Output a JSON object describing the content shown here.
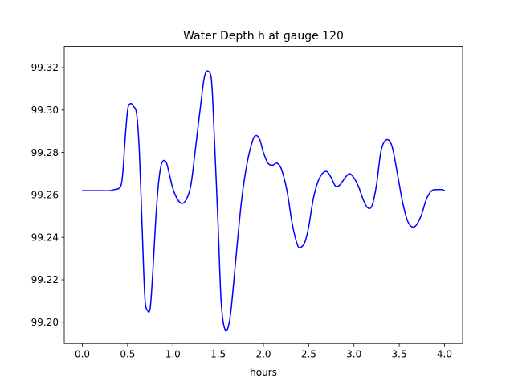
{
  "chart_data": {
    "type": "line",
    "title": "Water Depth h at gauge 120",
    "xlabel": "hours",
    "ylabel": "",
    "xlim": [
      -0.2,
      4.2
    ],
    "ylim": [
      99.19,
      99.33
    ],
    "xticks": [
      0.0,
      0.5,
      1.0,
      1.5,
      2.0,
      2.5,
      3.0,
      3.5,
      4.0
    ],
    "xtick_labels": [
      "0.0",
      "0.5",
      "1.0",
      "1.5",
      "2.0",
      "2.5",
      "3.0",
      "3.5",
      "4.0"
    ],
    "yticks": [
      99.2,
      99.22,
      99.24,
      99.26,
      99.28,
      99.3,
      99.32
    ],
    "ytick_labels": [
      "99.20",
      "99.22",
      "99.24",
      "99.26",
      "99.28",
      "99.30",
      "99.32"
    ],
    "grid": false,
    "series": [
      {
        "color": "#0000ff",
        "x": [
          0.0,
          0.1,
          0.2,
          0.3,
          0.35,
          0.4,
          0.43,
          0.45,
          0.47,
          0.5,
          0.53,
          0.56,
          0.6,
          0.63,
          0.66,
          0.69,
          0.72,
          0.75,
          0.78,
          0.81,
          0.84,
          0.87,
          0.9,
          0.93,
          0.96,
          1.0,
          1.05,
          1.1,
          1.15,
          1.2,
          1.25,
          1.3,
          1.35,
          1.4,
          1.43,
          1.46,
          1.5,
          1.53,
          1.56,
          1.6,
          1.64,
          1.7,
          1.76,
          1.82,
          1.88,
          1.92,
          1.96,
          2.0,
          2.05,
          2.1,
          2.15,
          2.2,
          2.26,
          2.32,
          2.38,
          2.42,
          2.46,
          2.5,
          2.55,
          2.6,
          2.65,
          2.7,
          2.75,
          2.8,
          2.85,
          2.9,
          2.95,
          3.0,
          3.05,
          3.1,
          3.15,
          3.2,
          3.25,
          3.3,
          3.36,
          3.42,
          3.48,
          3.54,
          3.6,
          3.67,
          3.74,
          3.8,
          3.86,
          3.92,
          3.97,
          4.0
        ],
        "y": [
          99.262,
          99.262,
          99.262,
          99.262,
          99.2625,
          99.263,
          99.265,
          99.272,
          99.285,
          99.3,
          99.303,
          99.302,
          99.298,
          99.28,
          99.245,
          99.212,
          99.2055,
          99.207,
          99.225,
          99.248,
          99.265,
          99.274,
          99.2762,
          99.275,
          99.27,
          99.263,
          99.258,
          99.256,
          99.258,
          99.265,
          99.282,
          99.3,
          99.316,
          99.318,
          99.312,
          99.285,
          99.245,
          99.212,
          99.199,
          99.1965,
          99.205,
          99.232,
          99.258,
          99.275,
          99.2855,
          99.288,
          99.286,
          99.28,
          99.275,
          99.274,
          99.275,
          99.272,
          99.262,
          99.246,
          99.236,
          99.2355,
          99.238,
          99.245,
          99.258,
          99.266,
          99.27,
          99.271,
          99.268,
          99.264,
          99.265,
          99.268,
          99.27,
          99.268,
          99.264,
          99.258,
          99.254,
          99.255,
          99.265,
          99.281,
          99.286,
          99.283,
          99.27,
          99.256,
          99.247,
          99.245,
          99.25,
          99.258,
          99.262,
          99.2625,
          99.2625,
          99.262
        ]
      }
    ]
  }
}
